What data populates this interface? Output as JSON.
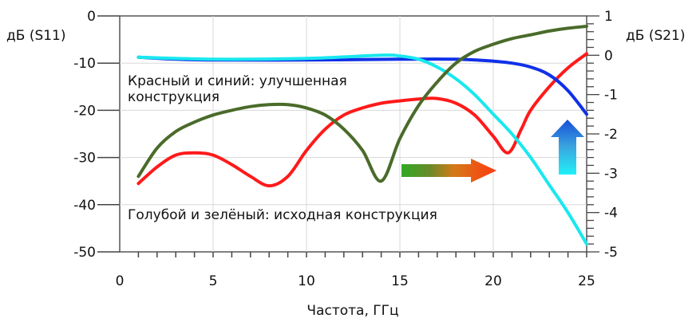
{
  "chart_data": {
    "type": "line",
    "x_label": "Частота, ГГц",
    "y_left_label": "дБ (S11)",
    "y_right_label": "дБ (S21)",
    "xlim": [
      0,
      25
    ],
    "y_left_lim": [
      -50,
      0
    ],
    "y_right_lim": [
      -5,
      1
    ],
    "x_ticks": [
      "0",
      "5",
      "10",
      "15",
      "20",
      "25"
    ],
    "y_left_ticks": [
      "0",
      "-10",
      "-20",
      "-30",
      "-40",
      "-50"
    ],
    "y_right_ticks": [
      "1",
      "0",
      "-1",
      "-2",
      "-3",
      "-4",
      "-5"
    ],
    "grid": true,
    "annotations": [
      "Красный и синий: улучшенная конструкция",
      "Голубой и зелёный: исходная конструкция"
    ],
    "series": [
      {
        "axis": "left",
        "color": "#ff1a1a",
        "points": [
          [
            1,
            -35.5
          ],
          [
            2,
            -32
          ],
          [
            3,
            -29.5
          ],
          [
            4,
            -29
          ],
          [
            5,
            -29.5
          ],
          [
            6,
            -31.5
          ],
          [
            7,
            -34
          ],
          [
            8,
            -36
          ],
          [
            9,
            -34
          ],
          [
            10,
            -28.5
          ],
          [
            11,
            -24
          ],
          [
            12,
            -21
          ],
          [
            13,
            -19.5
          ],
          [
            14,
            -18.5
          ],
          [
            15,
            -18
          ],
          [
            16,
            -17.6
          ],
          [
            17,
            -17.5
          ],
          [
            18,
            -18.5
          ],
          [
            19,
            -21
          ],
          [
            20,
            -25.5
          ],
          [
            20.8,
            -29
          ],
          [
            21.5,
            -24
          ],
          [
            22,
            -20
          ],
          [
            23,
            -15
          ],
          [
            24,
            -11
          ],
          [
            25,
            -8
          ]
        ]
      },
      {
        "axis": "right",
        "color": "#1030e8",
        "points": [
          [
            1,
            -0.05
          ],
          [
            3,
            -0.1
          ],
          [
            5,
            -0.12
          ],
          [
            10,
            -0.12
          ],
          [
            15,
            -0.1
          ],
          [
            18,
            -0.1
          ],
          [
            20,
            -0.15
          ],
          [
            21,
            -0.2
          ],
          [
            22,
            -0.3
          ],
          [
            23,
            -0.5
          ],
          [
            24,
            -0.9
          ],
          [
            25,
            -1.5
          ]
        ]
      },
      {
        "axis": "right",
        "color": "#19e8ee",
        "points": [
          [
            1,
            -0.05
          ],
          [
            5,
            -0.1
          ],
          [
            10,
            -0.08
          ],
          [
            14,
            0
          ],
          [
            15,
            -0.02
          ],
          [
            16,
            -0.1
          ],
          [
            17,
            -0.3
          ],
          [
            18,
            -0.6
          ],
          [
            19,
            -1.0
          ],
          [
            20,
            -1.5
          ],
          [
            21,
            -2.0
          ],
          [
            22,
            -2.6
          ],
          [
            23,
            -3.3
          ],
          [
            24,
            -4.0
          ],
          [
            25,
            -4.8
          ]
        ]
      },
      {
        "axis": "left",
        "color": "#4a6b2a",
        "points": [
          [
            1,
            -34
          ],
          [
            2,
            -28
          ],
          [
            3,
            -24.5
          ],
          [
            4,
            -22.5
          ],
          [
            5,
            -21
          ],
          [
            6,
            -20
          ],
          [
            7,
            -19.2
          ],
          [
            8,
            -18.8
          ],
          [
            9,
            -18.8
          ],
          [
            10,
            -19.5
          ],
          [
            11,
            -21
          ],
          [
            12,
            -24
          ],
          [
            13,
            -28.5
          ],
          [
            14,
            -35
          ],
          [
            15,
            -26
          ],
          [
            16,
            -19
          ],
          [
            17,
            -14
          ],
          [
            18,
            -10
          ],
          [
            19,
            -7.5
          ],
          [
            20,
            -6
          ],
          [
            21,
            -4.8
          ],
          [
            22,
            -4
          ],
          [
            23,
            -3.2
          ],
          [
            24,
            -2.6
          ],
          [
            25,
            -2.2
          ]
        ]
      }
    ]
  }
}
